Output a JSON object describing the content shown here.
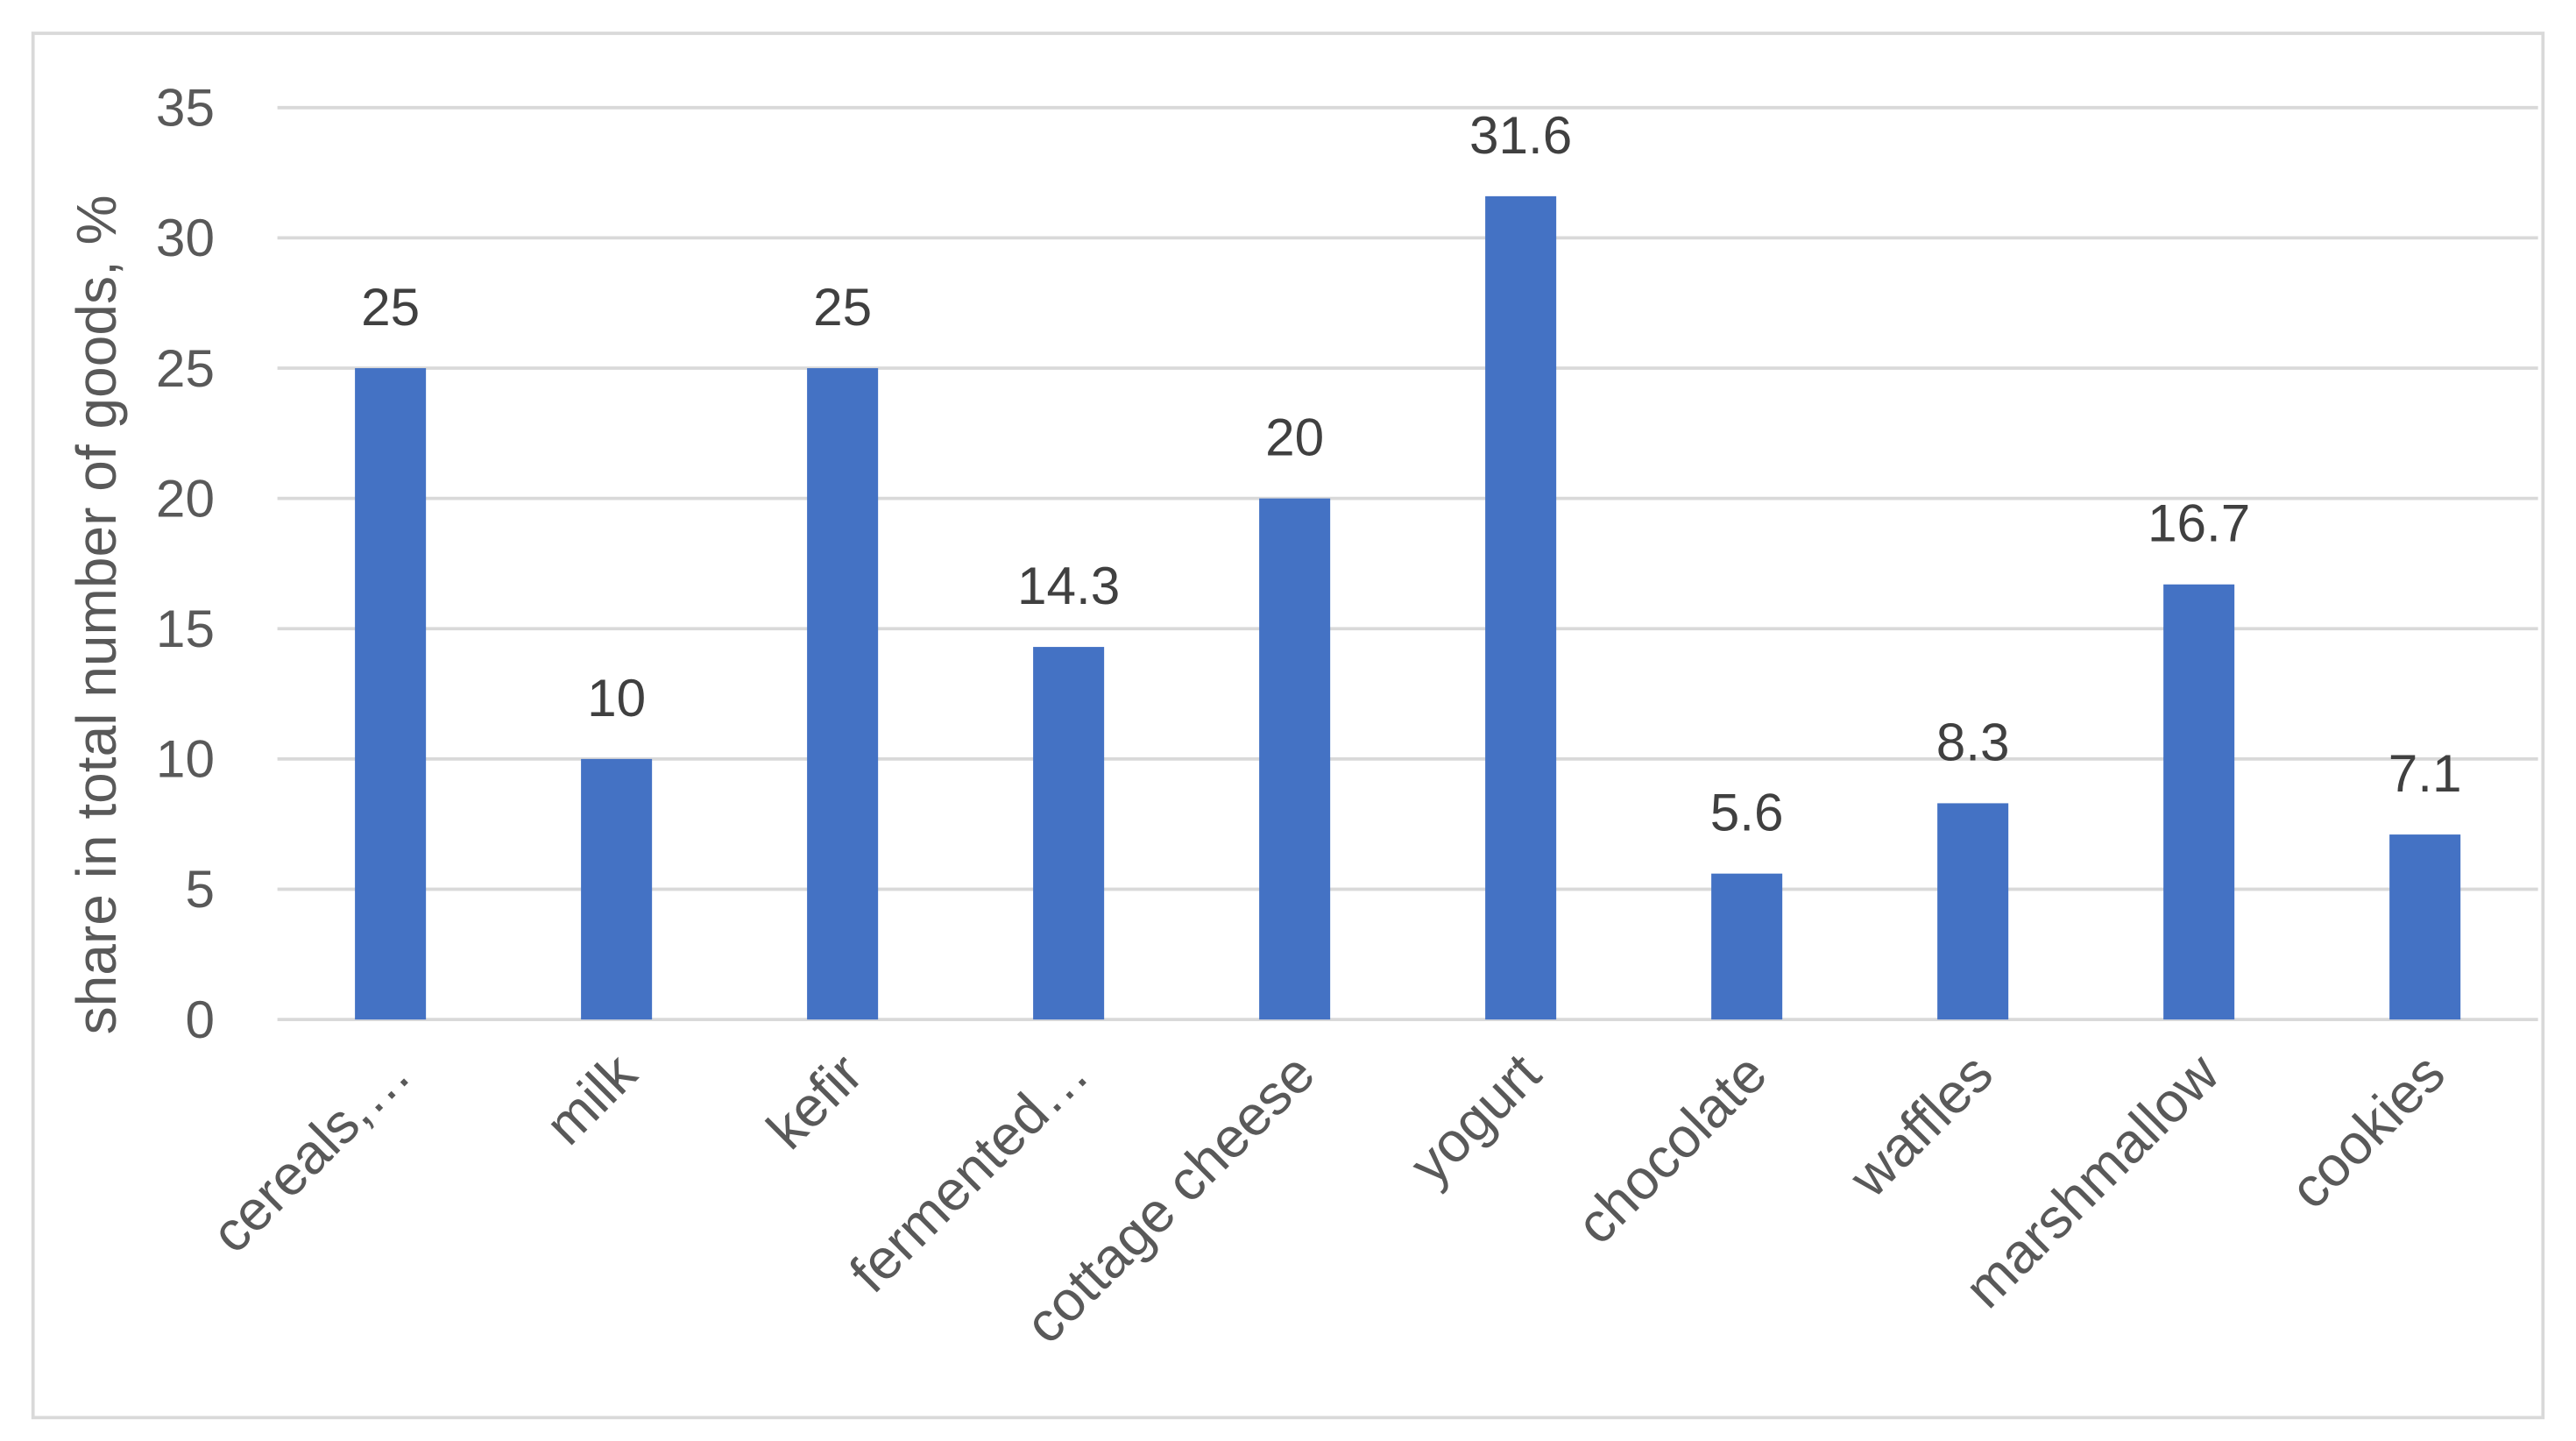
{
  "chart_data": {
    "type": "bar",
    "title": "",
    "xlabel": "",
    "ylabel": "share in total number of goods, %",
    "ylim": [
      0,
      35
    ],
    "yticks": [
      0,
      5,
      10,
      15,
      20,
      25,
      30,
      35
    ],
    "grid": true,
    "legend": "none",
    "bar_color": "#4472C4",
    "categories": [
      "cereals,…",
      "milk",
      "kefir",
      "fermented…",
      "cottage cheese",
      "yogurt",
      "chocolate",
      "waffles",
      "marshmallow",
      "cookies"
    ],
    "values": [
      25,
      10,
      25,
      14.3,
      20,
      31.6,
      5.6,
      8.3,
      16.7,
      7.1
    ],
    "data_labels": [
      "25",
      "10",
      "25",
      "14.3",
      "20",
      "31.6",
      "5.6",
      "8.3",
      "16.7",
      "7.1"
    ]
  }
}
